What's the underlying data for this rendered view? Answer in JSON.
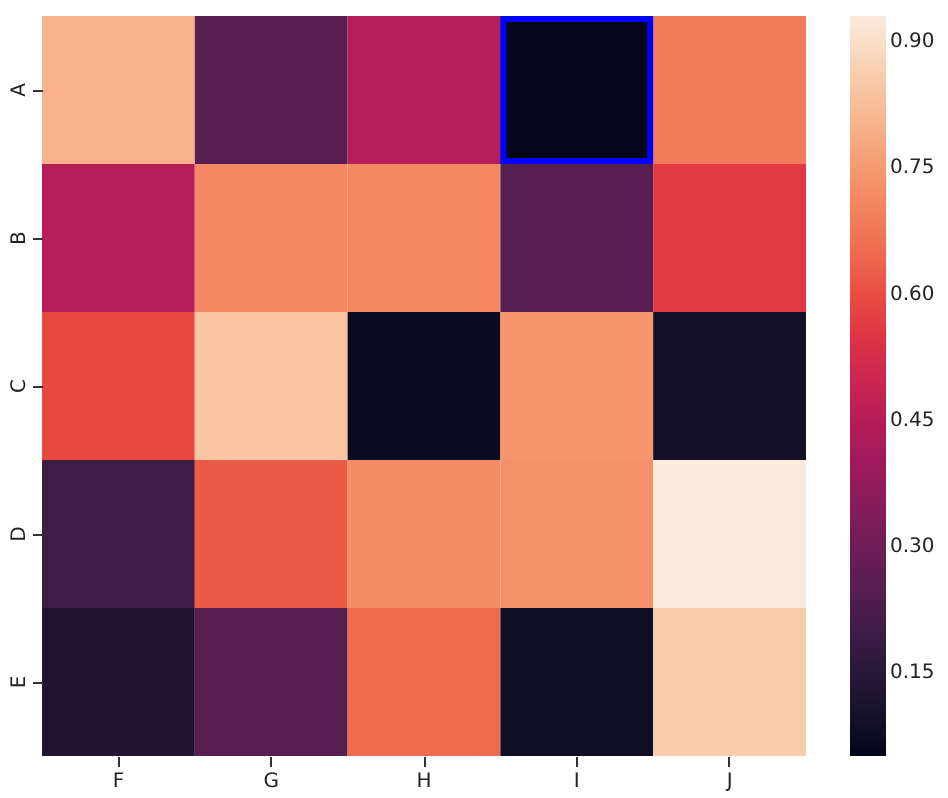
{
  "chart_data": {
    "type": "heatmap",
    "categories": [
      "F",
      "G",
      "H",
      "I",
      "J"
    ],
    "y_categories": [
      "A",
      "B",
      "C",
      "D",
      "E"
    ],
    "cells": [
      [
        0.8,
        0.25,
        0.45,
        0.05,
        0.68
      ],
      [
        0.45,
        0.71,
        0.71,
        0.25,
        0.56
      ],
      [
        0.59,
        0.84,
        0.07,
        0.74,
        0.09
      ],
      [
        0.2,
        0.62,
        0.72,
        0.73,
        0.93
      ],
      [
        0.13,
        0.25,
        0.65,
        0.08,
        0.86
      ]
    ],
    "clim": [
      0.05,
      0.93
    ],
    "cticks": [
      {
        "value": 0.15,
        "label": "0.15"
      },
      {
        "value": 0.3,
        "label": "0.30"
      },
      {
        "value": 0.45,
        "label": "0.45"
      },
      {
        "value": 0.6,
        "label": "0.60"
      },
      {
        "value": 0.75,
        "label": "0.75"
      },
      {
        "value": 0.9,
        "label": "0.90"
      }
    ]
  }
}
